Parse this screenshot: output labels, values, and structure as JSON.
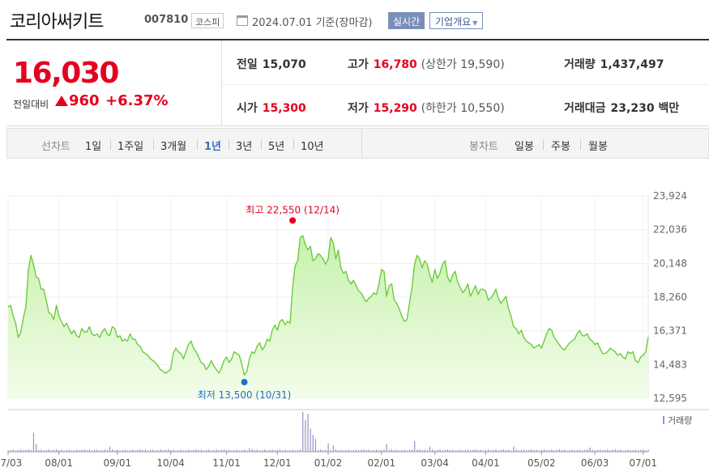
{
  "header": {
    "title": "코리아써키트",
    "code": "007810",
    "market": "코스피",
    "date_icon": "calendar-icon",
    "date": "2024.07.01 기준(장마감)",
    "realtime_label": "실시간",
    "overview_label": "기업개요"
  },
  "quote": {
    "price": "16,030",
    "change_label": "전일대비",
    "change_abs": "960",
    "change_pct": "+6.37%",
    "up_color": "#e4001f",
    "prev_close": {
      "label": "전일",
      "value": "15,070"
    },
    "open": {
      "label": "시가",
      "value": "15,300"
    },
    "high": {
      "label": "고가",
      "value": "16,780",
      "limit_label": "상한가",
      "limit_value": "19,590"
    },
    "low": {
      "label": "저가",
      "value": "15,290",
      "limit_label": "하한가",
      "limit_value": "10,550"
    },
    "volume": {
      "label": "거래량",
      "value": "1,437,497"
    },
    "turnover": {
      "label": "거래대금",
      "value": "23,230",
      "unit": "백만"
    }
  },
  "toolbar": {
    "line_chart_label": "선차트",
    "periods": [
      "1일",
      "1주일",
      "3개월",
      "1년",
      "3년",
      "5년",
      "10년"
    ],
    "active_period": "1년",
    "candle_chart_label": "봉차트",
    "candle_periods": [
      "일봉",
      "주봉",
      "월봉"
    ]
  },
  "chart_data": {
    "type": "area",
    "x_tick_labels": [
      "07/03",
      "08/01",
      "09/01",
      "10/04",
      "11/01",
      "12/01",
      "01/02",
      "02/01",
      "03/04",
      "04/01",
      "05/02",
      "06/03",
      "07/01"
    ],
    "x_tick_index": [
      0,
      20,
      43,
      64,
      86,
      106,
      126,
      147,
      168,
      188,
      210,
      231,
      250
    ],
    "y_ticks": [
      12595,
      14483,
      16371,
      18260,
      20148,
      22036,
      23924
    ],
    "ylim": [
      12595,
      23924
    ],
    "high_annotation": "최고 22,550 (12/14)",
    "low_annotation": "최저 13,500 (10/31)",
    "high_index": 112,
    "low_index": 93,
    "high_value": 22550,
    "low_value": 13500,
    "volume_legend": "거래량",
    "line_color": "#6ccc3c",
    "volume_color": "#9a8fd0",
    "anchors": [
      [
        0,
        17700
      ],
      [
        1,
        17800
      ],
      [
        2,
        17200
      ],
      [
        3,
        16800
      ],
      [
        4,
        16000
      ],
      [
        5,
        16300
      ],
      [
        6,
        17100
      ],
      [
        7,
        17700
      ],
      [
        8,
        19800
      ],
      [
        9,
        20600
      ],
      [
        10,
        20100
      ],
      [
        11,
        19400
      ],
      [
        12,
        19300
      ],
      [
        13,
        18700
      ],
      [
        14,
        18700
      ],
      [
        15,
        18100
      ],
      [
        16,
        17400
      ],
      [
        17,
        17300
      ],
      [
        18,
        17000
      ],
      [
        19,
        17800
      ],
      [
        20,
        17200
      ],
      [
        21,
        16900
      ],
      [
        22,
        16600
      ],
      [
        23,
        16800
      ],
      [
        24,
        16500
      ],
      [
        25,
        16200
      ],
      [
        26,
        16400
      ],
      [
        27,
        16100
      ],
      [
        28,
        16000
      ],
      [
        29,
        16500
      ],
      [
        30,
        16300
      ],
      [
        31,
        16300
      ],
      [
        32,
        16600
      ],
      [
        33,
        16200
      ],
      [
        34,
        16100
      ],
      [
        35,
        16200
      ],
      [
        36,
        16000
      ],
      [
        37,
        16300
      ],
      [
        38,
        16500
      ],
      [
        39,
        16200
      ],
      [
        40,
        16100
      ],
      [
        41,
        16600
      ],
      [
        42,
        16500
      ],
      [
        43,
        16000
      ],
      [
        44,
        16100
      ],
      [
        45,
        15800
      ],
      [
        46,
        15900
      ],
      [
        47,
        15800
      ],
      [
        48,
        16200
      ],
      [
        49,
        15900
      ],
      [
        50,
        15900
      ],
      [
        51,
        15600
      ],
      [
        52,
        15500
      ],
      [
        53,
        15200
      ],
      [
        54,
        15100
      ],
      [
        55,
        15000
      ],
      [
        56,
        14800
      ],
      [
        57,
        14700
      ],
      [
        58,
        14600
      ],
      [
        59,
        14400
      ],
      [
        60,
        14200
      ],
      [
        61,
        14100
      ],
      [
        62,
        14000
      ],
      [
        63,
        14100
      ],
      [
        64,
        14200
      ],
      [
        65,
        15100
      ],
      [
        66,
        15400
      ],
      [
        67,
        15200
      ],
      [
        68,
        15100
      ],
      [
        69,
        14800
      ],
      [
        70,
        15200
      ],
      [
        71,
        15600
      ],
      [
        72,
        15800
      ],
      [
        73,
        15400
      ],
      [
        74,
        15200
      ],
      [
        75,
        14900
      ],
      [
        76,
        14600
      ],
      [
        77,
        14500
      ],
      [
        78,
        14200
      ],
      [
        79,
        14400
      ],
      [
        80,
        14700
      ],
      [
        81,
        14400
      ],
      [
        82,
        14200
      ],
      [
        83,
        14000
      ],
      [
        84,
        14300
      ],
      [
        85,
        14700
      ],
      [
        86,
        14900
      ],
      [
        87,
        14600
      ],
      [
        88,
        14800
      ],
      [
        89,
        15200
      ],
      [
        90,
        15100
      ],
      [
        91,
        15000
      ],
      [
        92,
        14500
      ],
      [
        93,
        13900
      ],
      [
        94,
        14100
      ],
      [
        95,
        14800
      ],
      [
        96,
        15200
      ],
      [
        97,
        15100
      ],
      [
        98,
        15500
      ],
      [
        99,
        15700
      ],
      [
        100,
        15300
      ],
      [
        101,
        15500
      ],
      [
        102,
        15900
      ],
      [
        103,
        15800
      ],
      [
        104,
        16400
      ],
      [
        105,
        16700
      ],
      [
        106,
        16400
      ],
      [
        107,
        16900
      ],
      [
        108,
        17000
      ],
      [
        109,
        16700
      ],
      [
        110,
        16900
      ],
      [
        111,
        16800
      ],
      [
        112,
        18800
      ],
      [
        113,
        20000
      ],
      [
        114,
        20300
      ],
      [
        115,
        21600
      ],
      [
        116,
        21700
      ],
      [
        117,
        21200
      ],
      [
        118,
        20900
      ],
      [
        119,
        21100
      ],
      [
        120,
        20300
      ],
      [
        121,
        20400
      ],
      [
        122,
        20700
      ],
      [
        123,
        20600
      ],
      [
        124,
        20400
      ],
      [
        125,
        20100
      ],
      [
        126,
        20400
      ],
      [
        127,
        21600
      ],
      [
        128,
        21300
      ],
      [
        129,
        20400
      ],
      [
        130,
        20900
      ],
      [
        131,
        19900
      ],
      [
        132,
        19600
      ],
      [
        133,
        19700
      ],
      [
        134,
        19200
      ],
      [
        135,
        19000
      ],
      [
        136,
        19200
      ],
      [
        137,
        18900
      ],
      [
        138,
        18600
      ],
      [
        139,
        18500
      ],
      [
        140,
        18200
      ],
      [
        141,
        18000
      ],
      [
        142,
        18200
      ],
      [
        143,
        18300
      ],
      [
        144,
        18500
      ],
      [
        145,
        18400
      ],
      [
        146,
        19000
      ],
      [
        147,
        19800
      ],
      [
        148,
        19700
      ],
      [
        149,
        18300
      ],
      [
        150,
        18900
      ],
      [
        151,
        19000
      ],
      [
        152,
        18100
      ],
      [
        153,
        17900
      ],
      [
        154,
        17600
      ],
      [
        155,
        17200
      ],
      [
        156,
        16900
      ],
      [
        157,
        17000
      ],
      [
        158,
        17900
      ],
      [
        159,
        18800
      ],
      [
        160,
        20100
      ],
      [
        161,
        20600
      ],
      [
        162,
        20400
      ],
      [
        163,
        19900
      ],
      [
        164,
        20300
      ],
      [
        165,
        20100
      ],
      [
        166,
        19500
      ],
      [
        167,
        19100
      ],
      [
        168,
        19800
      ],
      [
        169,
        19300
      ],
      [
        170,
        19600
      ],
      [
        171,
        20100
      ],
      [
        172,
        20300
      ],
      [
        173,
        19400
      ],
      [
        174,
        19100
      ],
      [
        175,
        19500
      ],
      [
        176,
        19700
      ],
      [
        177,
        19100
      ],
      [
        178,
        18800
      ],
      [
        179,
        18500
      ],
      [
        180,
        18700
      ],
      [
        181,
        19000
      ],
      [
        182,
        18300
      ],
      [
        183,
        18600
      ],
      [
        184,
        18900
      ],
      [
        185,
        18400
      ],
      [
        186,
        18700
      ],
      [
        187,
        18700
      ],
      [
        188,
        18600
      ],
      [
        189,
        18100
      ],
      [
        190,
        18200
      ],
      [
        191,
        18400
      ],
      [
        192,
        18700
      ],
      [
        193,
        18200
      ],
      [
        194,
        17900
      ],
      [
        195,
        18100
      ],
      [
        196,
        18300
      ],
      [
        197,
        17600
      ],
      [
        198,
        17200
      ],
      [
        199,
        16600
      ],
      [
        200,
        16500
      ],
      [
        201,
        16200
      ],
      [
        202,
        16400
      ],
      [
        203,
        16000
      ],
      [
        204,
        15800
      ],
      [
        205,
        15700
      ],
      [
        206,
        15600
      ],
      [
        207,
        15400
      ],
      [
        208,
        15500
      ],
      [
        209,
        15600
      ],
      [
        210,
        15400
      ],
      [
        211,
        15800
      ],
      [
        212,
        16200
      ],
      [
        213,
        16500
      ],
      [
        214,
        16400
      ],
      [
        215,
        16000
      ],
      [
        216,
        15800
      ],
      [
        217,
        15600
      ],
      [
        218,
        15400
      ],
      [
        219,
        15300
      ],
      [
        220,
        15500
      ],
      [
        221,
        15700
      ],
      [
        222,
        15800
      ],
      [
        223,
        15900
      ],
      [
        224,
        16200
      ],
      [
        225,
        16400
      ],
      [
        226,
        16100
      ],
      [
        227,
        16100
      ],
      [
        228,
        16200
      ],
      [
        229,
        15900
      ],
      [
        230,
        15800
      ],
      [
        231,
        15600
      ],
      [
        232,
        15700
      ],
      [
        233,
        15400
      ],
      [
        234,
        15100
      ],
      [
        235,
        15100
      ],
      [
        236,
        15200
      ],
      [
        237,
        15400
      ],
      [
        238,
        15300
      ],
      [
        239,
        15200
      ],
      [
        240,
        15000
      ],
      [
        241,
        15100
      ],
      [
        242,
        14900
      ],
      [
        243,
        14800
      ],
      [
        244,
        15200
      ],
      [
        245,
        15100
      ],
      [
        246,
        15200
      ],
      [
        247,
        14700
      ],
      [
        248,
        14600
      ],
      [
        249,
        14900
      ],
      [
        250,
        15000
      ],
      [
        251,
        15200
      ],
      [
        252,
        16030
      ]
    ],
    "volume_spikes": [
      [
        10,
        0.45
      ],
      [
        11,
        0.18
      ],
      [
        40,
        0.12
      ],
      [
        95,
        0.08
      ],
      [
        116,
        0.95
      ],
      [
        117,
        0.75
      ],
      [
        118,
        0.9
      ],
      [
        119,
        0.55
      ],
      [
        120,
        0.4
      ],
      [
        121,
        0.3
      ],
      [
        126,
        0.2
      ],
      [
        128,
        0.15
      ],
      [
        149,
        0.18
      ],
      [
        160,
        0.25
      ],
      [
        166,
        0.12
      ],
      [
        199,
        0.12
      ],
      [
        229,
        0.1
      ]
    ]
  }
}
